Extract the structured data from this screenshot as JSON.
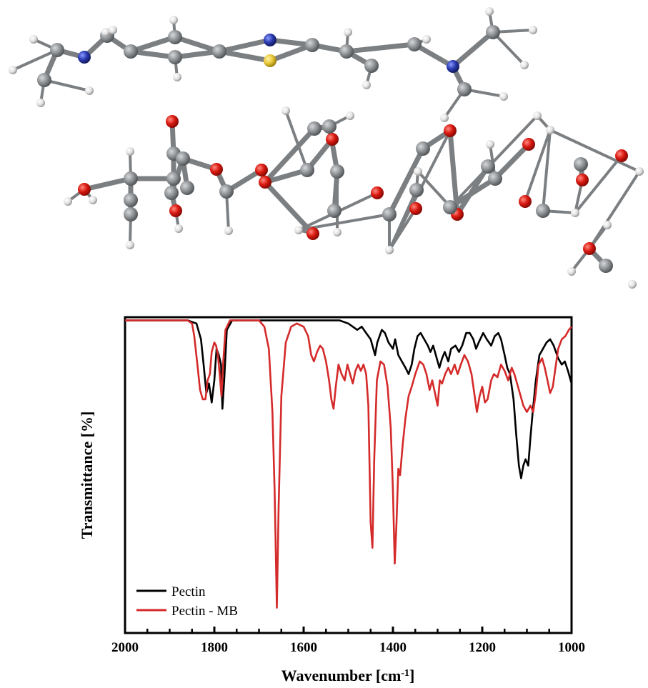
{
  "figure": {
    "molecule_image": "ball-and-stick model of methylene blue above pectin fragment"
  },
  "colors": {
    "carbon": "#8a8d90",
    "oxygen": "#d8180f",
    "nitrogen": "#2a3ab0",
    "sulfur": "#e8c838",
    "hydrogen": "#e8e8e8",
    "pectin": "#000000",
    "pectin_mb": "#d42a2a"
  },
  "chart_data": {
    "type": "line",
    "title": "",
    "xlabel": "Wavenumber [cm",
    "xlabel_sup": "-1",
    "xlabel_close": "]",
    "ylabel": "Transmittance [%]",
    "xlim": [
      2000,
      1000
    ],
    "x_reversed": true,
    "ylim": [
      0,
      100
    ],
    "y_ticks_shown": false,
    "grid": false,
    "legend_position": "bottom-left",
    "xticks": [
      "2000",
      "1800",
      "1600",
      "1400",
      "1200",
      "1000"
    ],
    "xtick_values": [
      2000,
      1800,
      1600,
      1400,
      1200,
      1000
    ],
    "series": [
      {
        "name": "Pectin",
        "color": "#000000",
        "points": [
          [
            2000,
            99
          ],
          [
            1860,
            99
          ],
          [
            1840,
            98
          ],
          [
            1830,
            93
          ],
          [
            1824,
            85
          ],
          [
            1818,
            76
          ],
          [
            1812,
            79
          ],
          [
            1806,
            73
          ],
          [
            1800,
            80
          ],
          [
            1795,
            90
          ],
          [
            1790,
            88
          ],
          [
            1785,
            85
          ],
          [
            1782,
            71
          ],
          [
            1778,
            80
          ],
          [
            1772,
            96
          ],
          [
            1760,
            99
          ],
          [
            1700,
            99
          ],
          [
            1600,
            99
          ],
          [
            1520,
            99
          ],
          [
            1500,
            98
          ],
          [
            1480,
            96
          ],
          [
            1470,
            97
          ],
          [
            1460,
            95
          ],
          [
            1450,
            93
          ],
          [
            1440,
            88
          ],
          [
            1435,
            92
          ],
          [
            1425,
            96
          ],
          [
            1418,
            95
          ],
          [
            1410,
            92
          ],
          [
            1400,
            90
          ],
          [
            1395,
            93
          ],
          [
            1388,
            88
          ],
          [
            1380,
            86
          ],
          [
            1372,
            84
          ],
          [
            1365,
            82
          ],
          [
            1358,
            85
          ],
          [
            1352,
            90
          ],
          [
            1345,
            94
          ],
          [
            1338,
            95
          ],
          [
            1330,
            93
          ],
          [
            1322,
            91
          ],
          [
            1316,
            89
          ],
          [
            1310,
            91
          ],
          [
            1302,
            87
          ],
          [
            1296,
            84
          ],
          [
            1290,
            87
          ],
          [
            1284,
            89
          ],
          [
            1276,
            86
          ],
          [
            1270,
            90
          ],
          [
            1260,
            91
          ],
          [
            1252,
            89
          ],
          [
            1245,
            91
          ],
          [
            1236,
            95
          ],
          [
            1228,
            95
          ],
          [
            1220,
            93
          ],
          [
            1214,
            90
          ],
          [
            1208,
            92
          ],
          [
            1198,
            95
          ],
          [
            1190,
            93
          ],
          [
            1180,
            91
          ],
          [
            1172,
            94
          ],
          [
            1164,
            95
          ],
          [
            1158,
            93
          ],
          [
            1150,
            88
          ],
          [
            1144,
            84
          ],
          [
            1138,
            82
          ],
          [
            1130,
            74
          ],
          [
            1124,
            63
          ],
          [
            1118,
            53
          ],
          [
            1113,
            49
          ],
          [
            1108,
            53
          ],
          [
            1103,
            55
          ],
          [
            1097,
            53
          ],
          [
            1092,
            62
          ],
          [
            1087,
            70
          ],
          [
            1080,
            80
          ],
          [
            1072,
            88
          ],
          [
            1064,
            90
          ],
          [
            1056,
            92
          ],
          [
            1048,
            93
          ],
          [
            1040,
            91
          ],
          [
            1030,
            87
          ],
          [
            1022,
            85
          ],
          [
            1015,
            86
          ],
          [
            1008,
            83
          ],
          [
            1000,
            79
          ]
        ]
      },
      {
        "name": "Pectin - MB",
        "color": "#d42a2a",
        "points": [
          [
            2000,
            99
          ],
          [
            1860,
            99
          ],
          [
            1850,
            98
          ],
          [
            1845,
            94
          ],
          [
            1838,
            85
          ],
          [
            1832,
            77
          ],
          [
            1826,
            74
          ],
          [
            1820,
            74
          ],
          [
            1815,
            80
          ],
          [
            1810,
            82
          ],
          [
            1806,
            89
          ],
          [
            1800,
            92
          ],
          [
            1796,
            91
          ],
          [
            1792,
            88
          ],
          [
            1788,
            82
          ],
          [
            1784,
            75
          ],
          [
            1780,
            86
          ],
          [
            1775,
            96
          ],
          [
            1765,
            99
          ],
          [
            1720,
            99
          ],
          [
            1700,
            99
          ],
          [
            1688,
            97
          ],
          [
            1678,
            90
          ],
          [
            1670,
            70
          ],
          [
            1665,
            45
          ],
          [
            1660,
            8
          ],
          [
            1656,
            40
          ],
          [
            1650,
            75
          ],
          [
            1640,
            92
          ],
          [
            1628,
            97
          ],
          [
            1615,
            98
          ],
          [
            1600,
            97
          ],
          [
            1590,
            94
          ],
          [
            1583,
            88
          ],
          [
            1577,
            86
          ],
          [
            1570,
            89
          ],
          [
            1563,
            91
          ],
          [
            1557,
            90
          ],
          [
            1550,
            86
          ],
          [
            1543,
            80
          ],
          [
            1538,
            74
          ],
          [
            1533,
            71
          ],
          [
            1528,
            78
          ],
          [
            1522,
            85
          ],
          [
            1515,
            82
          ],
          [
            1508,
            80
          ],
          [
            1502,
            85
          ],
          [
            1496,
            82
          ],
          [
            1490,
            79
          ],
          [
            1484,
            83
          ],
          [
            1478,
            85
          ],
          [
            1472,
            83
          ],
          [
            1466,
            85
          ],
          [
            1460,
            82
          ],
          [
            1455,
            72
          ],
          [
            1450,
            35
          ],
          [
            1446,
            27
          ],
          [
            1442,
            55
          ],
          [
            1436,
            80
          ],
          [
            1428,
            86
          ],
          [
            1420,
            85
          ],
          [
            1412,
            78
          ],
          [
            1405,
            65
          ],
          [
            1400,
            45
          ],
          [
            1396,
            22
          ],
          [
            1392,
            35
          ],
          [
            1388,
            52
          ],
          [
            1384,
            50
          ],
          [
            1378,
            60
          ],
          [
            1372,
            68
          ],
          [
            1365,
            75
          ],
          [
            1358,
            78
          ],
          [
            1350,
            82
          ],
          [
            1345,
            84
          ],
          [
            1340,
            86
          ],
          [
            1332,
            85
          ],
          [
            1325,
            82
          ],
          [
            1318,
            77
          ],
          [
            1312,
            80
          ],
          [
            1306,
            76
          ],
          [
            1300,
            72
          ],
          [
            1295,
            80
          ],
          [
            1290,
            79
          ],
          [
            1283,
            82
          ],
          [
            1276,
            84
          ],
          [
            1270,
            82
          ],
          [
            1262,
            85
          ],
          [
            1255,
            82
          ],
          [
            1248,
            85
          ],
          [
            1240,
            88
          ],
          [
            1232,
            86
          ],
          [
            1224,
            82
          ],
          [
            1218,
            76
          ],
          [
            1212,
            70
          ],
          [
            1206,
            75
          ],
          [
            1200,
            78
          ],
          [
            1194,
            73
          ],
          [
            1188,
            74
          ],
          [
            1180,
            80
          ],
          [
            1174,
            82
          ],
          [
            1166,
            81
          ],
          [
            1158,
            85
          ],
          [
            1150,
            83
          ],
          [
            1142,
            80
          ],
          [
            1134,
            84
          ],
          [
            1128,
            82
          ],
          [
            1120,
            78
          ],
          [
            1114,
            75
          ],
          [
            1108,
            72
          ],
          [
            1100,
            70
          ],
          [
            1092,
            72
          ],
          [
            1086,
            70
          ],
          [
            1080,
            76
          ],
          [
            1074,
            85
          ],
          [
            1066,
            87
          ],
          [
            1060,
            84
          ],
          [
            1054,
            80
          ],
          [
            1048,
            76
          ],
          [
            1042,
            78
          ],
          [
            1036,
            84
          ],
          [
            1030,
            90
          ],
          [
            1022,
            93
          ],
          [
            1014,
            94
          ],
          [
            1006,
            96
          ],
          [
            1000,
            97
          ]
        ]
      }
    ]
  }
}
